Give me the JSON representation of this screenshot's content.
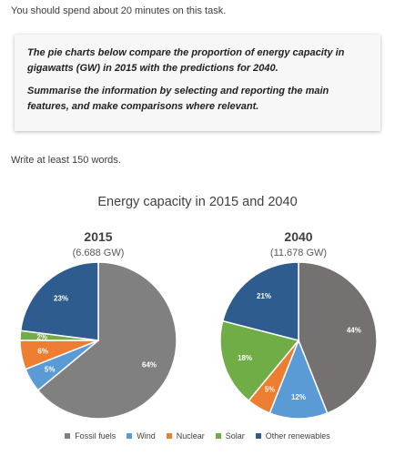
{
  "intro": "You should spend about 20 minutes on this task.",
  "task": {
    "line1": "The pie charts below compare the proportion of energy capacity in gigawatts (GW) in 2015 with the predictions for 2040.",
    "line2": "Summarise the information by selecting and reporting the main features, and make comparisons where relevant."
  },
  "instruction": "Write at least 150 words.",
  "chart_data": {
    "type": "pie",
    "title": "Energy capacity in 2015 and 2040",
    "categories": [
      "Fossil fuels",
      "Wind",
      "Nuclear",
      "Solar",
      "Other renewables"
    ],
    "colors": [
      "#808080",
      "#5b9bd5",
      "#ed7d31",
      "#70ad47",
      "#2e5c8e"
    ],
    "colors_2040_override": {
      "Fossil fuels": "#767171"
    },
    "pies": [
      {
        "year": "2015",
        "total": "(6.688 GW)",
        "values": [
          64,
          5,
          6,
          2,
          23
        ],
        "labels": [
          "64%",
          "5%",
          "6%",
          "2%",
          "23%"
        ]
      },
      {
        "year": "2040",
        "total": "(11.678 GW)",
        "values": [
          44,
          12,
          5,
          18,
          21
        ],
        "labels": [
          "44%",
          "12%",
          "5%",
          "18%",
          "21%"
        ]
      }
    ],
    "legend_position": "bottom"
  }
}
